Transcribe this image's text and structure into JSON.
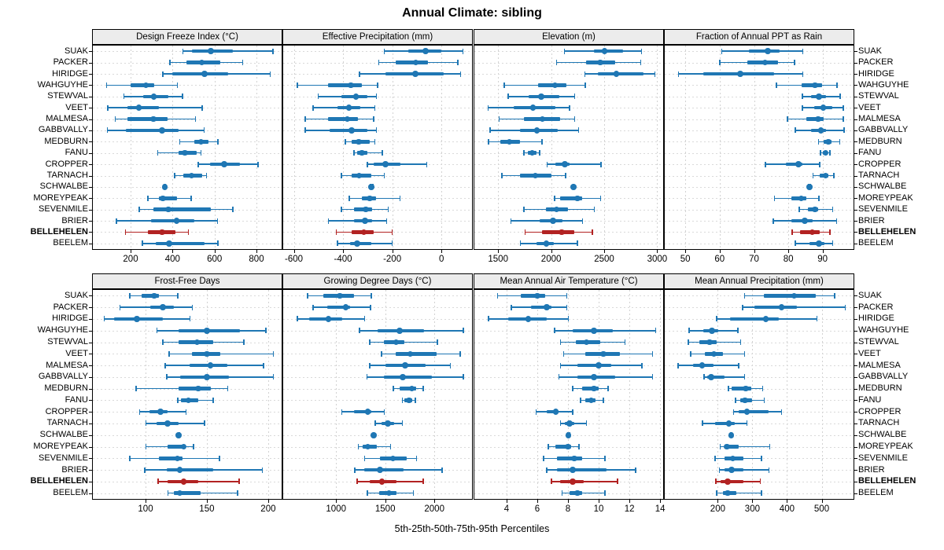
{
  "title": "Annual Climate: sibling",
  "caption": "5th-25th-50th-75th-95th Percentiles",
  "sites": [
    "SUAK",
    "PACKER",
    "HIRIDGE",
    "WAHGUYHE",
    "STEWVAL",
    "VEET",
    "MALMESA",
    "GABBVALLY",
    "MEDBURN",
    "FANU",
    "CROPPER",
    "TARNACH",
    "SCHWALBE",
    "MOREYPEAK",
    "SEVENMILE",
    "BRIER",
    "BELLEHELEN",
    "BEELEM"
  ],
  "highlight_site": "BELLEHELEN",
  "colors": {
    "series": "#1f77b4",
    "highlight": "#b22222",
    "strip_bg": "#ececec",
    "grid": "#d6d6d6",
    "border": "#000000"
  },
  "chart_data": [
    {
      "type": "dotplot-interval",
      "title": "Design Freeze Index (°C)",
      "percentiles": [
        5,
        25,
        50,
        75,
        95
      ],
      "xlim": [
        20,
        920
      ],
      "ticks": [
        200,
        400,
        600,
        800
      ],
      "values": [
        [
          448,
          491,
          583,
          687,
          877
        ],
        [
          387,
          467,
          540,
          626,
          734
        ],
        [
          353,
          397,
          552,
          666,
          865
        ],
        [
          85,
          198,
          273,
          314,
          422
        ],
        [
          167,
          259,
          310,
          379,
          446
        ],
        [
          90,
          184,
          240,
          334,
          540
        ],
        [
          125,
          184,
          309,
          375,
          509
        ],
        [
          88,
          178,
          349,
          428,
          550
        ],
        [
          434,
          503,
          536,
          571,
          615
        ],
        [
          328,
          428,
          459,
          515,
          534
        ],
        [
          521,
          580,
          646,
          723,
          806
        ],
        [
          409,
          450,
          491,
          540,
          561
        ],
        [
          358,
          360,
          362,
          364,
          366
        ],
        [
          281,
          334,
          354,
          421,
          488
        ],
        [
          240,
          309,
          380,
          584,
          686
        ],
        [
          131,
          296,
          420,
          503,
          613
        ],
        [
          175,
          281,
          349,
          415,
          475
        ],
        [
          255,
          321,
          383,
          553,
          615
        ]
      ]
    },
    {
      "type": "dotplot-interval",
      "title": "Effective Precipitation (mm)",
      "percentiles": [
        5,
        25,
        50,
        75,
        95
      ],
      "xlim": [
        -643,
        124
      ],
      "ticks": [
        -600,
        -400,
        -200,
        0
      ],
      "values": [
        [
          -234,
          -134,
          -65,
          -2,
          87
        ],
        [
          -255,
          -186,
          -105,
          -55,
          66
        ],
        [
          -334,
          -228,
          -107,
          8,
          77
        ],
        [
          -586,
          -460,
          -368,
          -323,
          -260
        ],
        [
          -502,
          -407,
          -347,
          -302,
          -265
        ],
        [
          -523,
          -423,
          -376,
          -328,
          -271
        ],
        [
          -555,
          -460,
          -383,
          -339,
          -276
        ],
        [
          -555,
          -455,
          -365,
          -302,
          -265
        ],
        [
          -392,
          -365,
          -337,
          -292,
          -271
        ],
        [
          -357,
          -344,
          -323,
          -302,
          -241
        ],
        [
          -302,
          -276,
          -228,
          -165,
          -60
        ],
        [
          -407,
          -365,
          -334,
          -286,
          -234
        ],
        [
          -290,
          -287,
          -285,
          -283,
          -280
        ],
        [
          -376,
          -323,
          -292,
          -265,
          -170
        ],
        [
          -407,
          -355,
          -307,
          -281,
          -218
        ],
        [
          -460,
          -355,
          -310,
          -281,
          -223
        ],
        [
          -428,
          -365,
          -316,
          -276,
          -202
        ],
        [
          -423,
          -370,
          -342,
          -286,
          -202
        ]
      ]
    },
    {
      "type": "dotplot-interval",
      "title": "Elevation (m)",
      "percentiles": [
        5,
        25,
        50,
        75,
        95
      ],
      "xlim": [
        1276,
        3056
      ],
      "ticks": [
        1500,
        2000,
        2500,
        3000
      ],
      "values": [
        [
          2123,
          2406,
          2504,
          2676,
          2849
        ],
        [
          2049,
          2332,
          2462,
          2602,
          2844
        ],
        [
          2315,
          2443,
          2615,
          2873,
          2977
        ],
        [
          1557,
          1878,
          2037,
          2147,
          2320
        ],
        [
          1594,
          1790,
          1906,
          2074,
          2221
        ],
        [
          1402,
          1643,
          1827,
          2037,
          2172
        ],
        [
          1507,
          1741,
          1918,
          2086,
          2221
        ],
        [
          1421,
          1704,
          1864,
          2061,
          2258
        ],
        [
          1409,
          1520,
          1606,
          1704,
          1913
        ],
        [
          1741,
          1778,
          1822,
          1864,
          1889
        ],
        [
          1958,
          2037,
          2130,
          2172,
          2468
        ],
        [
          1532,
          1704,
          1852,
          2000,
          2135
        ],
        [
          2205,
          2207,
          2209,
          2211,
          2213
        ],
        [
          2029,
          2086,
          2246,
          2295,
          2463
        ],
        [
          1741,
          1950,
          2049,
          2160,
          2406
        ],
        [
          1618,
          1889,
          2019,
          2110,
          2295
        ],
        [
          1753,
          1913,
          2098,
          2221,
          2388
        ],
        [
          1709,
          1864,
          1955,
          2024,
          2246
        ]
      ]
    },
    {
      "type": "dotplot-interval",
      "title": "Fraction of Annual PPT as Rain",
      "percentiles": [
        5,
        25,
        50,
        75,
        95
      ],
      "xlim": [
        44,
        99
      ],
      "ticks": [
        50,
        60,
        70,
        80,
        90
      ],
      "values": [
        [
          60.5,
          68.4,
          74,
          77.4,
          84.2
        ],
        [
          60,
          68,
          73.2,
          77,
          81.8
        ],
        [
          47.9,
          55.3,
          66,
          75.9,
          84.2
        ],
        [
          76.5,
          83.8,
          87.8,
          89.9,
          94.1
        ],
        [
          84,
          86.5,
          88.9,
          91,
          95
        ],
        [
          84,
          87.6,
          90.2,
          92.9,
          96
        ],
        [
          79.7,
          85.3,
          88.7,
          90.2,
          96
        ],
        [
          82,
          86.5,
          89.5,
          91,
          96.2
        ],
        [
          88.7,
          90.2,
          91.6,
          92.5,
          94.9
        ],
        [
          89.3,
          90.1,
          90.8,
          91.4,
          92.1
        ],
        [
          73.3,
          79.3,
          82.9,
          84.2,
          89.1
        ],
        [
          87.1,
          89.1,
          90.8,
          91.7,
          93.2
        ],
        [
          85.9,
          86,
          86.1,
          86.2,
          86.3
        ],
        [
          75.9,
          80.8,
          83.8,
          85.3,
          88.9
        ],
        [
          83.1,
          85.7,
          87.8,
          88.7,
          92.9
        ],
        [
          75.6,
          80.8,
          84.8,
          87.2,
          94
        ],
        [
          81.1,
          83.5,
          87,
          89.1,
          92.1
        ],
        [
          82,
          86.1,
          88.9,
          90.6,
          92.9
        ]
      ]
    },
    {
      "type": "dotplot-interval",
      "title": "Frost-Free Days",
      "percentiles": [
        5,
        25,
        50,
        75,
        95
      ],
      "xlim": [
        57,
        211
      ],
      "ticks": [
        100,
        150,
        200
      ],
      "values": [
        [
          87,
          97,
          107,
          111,
          126
        ],
        [
          79,
          104,
          114,
          123,
          138
        ],
        [
          66,
          74,
          93,
          114,
          136
        ],
        [
          109,
          127,
          150,
          177,
          198
        ],
        [
          114,
          127,
          142,
          155,
          180
        ],
        [
          119,
          138,
          150,
          161,
          204
        ],
        [
          116,
          136,
          153,
          167,
          196
        ],
        [
          117,
          128,
          150,
          168,
          204
        ],
        [
          92,
          127,
          143,
          153,
          167
        ],
        [
          126,
          129,
          135,
          143,
          155
        ],
        [
          95,
          103,
          112,
          118,
          133
        ],
        [
          100,
          109,
          118,
          127,
          148
        ],
        [
          126.5,
          126.8,
          127,
          127.2,
          127.5
        ],
        [
          100,
          118,
          131,
          132,
          139
        ],
        [
          87,
          111,
          126,
          130,
          160
        ],
        [
          99,
          117,
          128,
          155,
          195
        ],
        [
          110,
          118,
          131,
          143,
          176
        ],
        [
          118,
          123,
          128,
          145,
          175
        ]
      ]
    },
    {
      "type": "dotplot-interval",
      "title": "Growing Degree Days (°C)",
      "percentiles": [
        5,
        25,
        50,
        75,
        95
      ],
      "xlim": [
        463,
        2382
      ],
      "ticks": [
        1000,
        1500,
        2000
      ],
      "values": [
        [
          710,
          868,
          1039,
          1184,
          1355
        ],
        [
          763,
          908,
          1100,
          1145,
          1350
        ],
        [
          605,
          724,
          921,
          1066,
          1289
        ],
        [
          1237,
          1426,
          1645,
          1895,
          2290
        ],
        [
          1342,
          1487,
          1611,
          1697,
          2026
        ],
        [
          1461,
          1605,
          1755,
          2026,
          2258
        ],
        [
          1342,
          1500,
          1703,
          1908,
          2158
        ],
        [
          1311,
          1487,
          1676,
          1974,
          2290
        ],
        [
          1579,
          1645,
          1771,
          1816,
          1882
        ],
        [
          1671,
          1697,
          1742,
          1776,
          1803
        ],
        [
          1058,
          1184,
          1321,
          1355,
          1487
        ],
        [
          1395,
          1461,
          1526,
          1592,
          1671
        ],
        [
          1380,
          1381,
          1382,
          1383,
          1384
        ],
        [
          1224,
          1268,
          1324,
          1413,
          1553
        ],
        [
          1290,
          1450,
          1580,
          1720,
          1816
        ],
        [
          1189,
          1284,
          1447,
          1689,
          2074
        ],
        [
          1211,
          1342,
          1468,
          1618,
          1882
        ],
        [
          1316,
          1442,
          1539,
          1618,
          1784
        ]
      ]
    },
    {
      "type": "dotplot-interval",
      "title": "Mean Annual Air Temperature (°C)",
      "percentiles": [
        5,
        25,
        50,
        75,
        95
      ],
      "xlim": [
        1.9,
        14.2
      ],
      "ticks": [
        4,
        6,
        8,
        10,
        12,
        14
      ],
      "values": [
        [
          3.4,
          4.9,
          6.0,
          6.5,
          7.9
        ],
        [
          4.3,
          5.6,
          6.6,
          6.9,
          7.9
        ],
        [
          2.8,
          4.1,
          5.4,
          6.6,
          8.0
        ],
        [
          7.1,
          8.3,
          9.7,
          10.9,
          13.7
        ],
        [
          7.5,
          8.5,
          9.2,
          10.1,
          11.7
        ],
        [
          7.7,
          9.1,
          10.3,
          11.4,
          13.5
        ],
        [
          7.5,
          8.6,
          10.0,
          10.8,
          12.8
        ],
        [
          7.4,
          8.6,
          9.7,
          11.1,
          13.5
        ],
        [
          8.3,
          8.9,
          9.7,
          10.0,
          10.6
        ],
        [
          8.8,
          9.1,
          9.5,
          9.8,
          10.3
        ],
        [
          5.9,
          6.6,
          7.2,
          7.4,
          8.3
        ],
        [
          7.5,
          7.8,
          8.1,
          8.4,
          9.2
        ],
        [
          7.95,
          8.0,
          8.02,
          8.05,
          8.1
        ],
        [
          6.7,
          7.2,
          8.0,
          8.2,
          8.7
        ],
        [
          6.4,
          7.3,
          8.4,
          8.9,
          10.4
        ],
        [
          6.6,
          7.3,
          8.3,
          10.5,
          12.4
        ],
        [
          6.9,
          7.5,
          8.3,
          9.0,
          11.2
        ],
        [
          7.6,
          8.1,
          8.6,
          8.9,
          10.4
        ]
      ]
    },
    {
      "type": "dotplot-interval",
      "title": "Mean Annual Precipitation (mm)",
      "percentiles": [
        5,
        25,
        50,
        75,
        95
      ],
      "xlim": [
        47,
        592
      ],
      "ticks": [
        200,
        300,
        400,
        500
      ],
      "values": [
        [
          277,
          332,
          420,
          482,
          537
        ],
        [
          271,
          305,
          384,
          429,
          568
        ],
        [
          196,
          236,
          339,
          377,
          486
        ],
        [
          117,
          159,
          183,
          202,
          258
        ],
        [
          114,
          147,
          176,
          196,
          265
        ],
        [
          121,
          162,
          189,
          215,
          277
        ],
        [
          85,
          129,
          155,
          189,
          260
        ],
        [
          160,
          170,
          181,
          219,
          277
        ],
        [
          230,
          241,
          281,
          296,
          329
        ],
        [
          251,
          264,
          279,
          298,
          334
        ],
        [
          245,
          260,
          284,
          347,
          384
        ],
        [
          155,
          192,
          232,
          249,
          284
        ],
        [
          237,
          238,
          239,
          240,
          241
        ],
        [
          206,
          219,
          226,
          260,
          349
        ],
        [
          192,
          219,
          243,
          275,
          326
        ],
        [
          204,
          219,
          240,
          274,
          347
        ],
        [
          194,
          208,
          229,
          274,
          322
        ],
        [
          196,
          214,
          228,
          253,
          326
        ]
      ]
    }
  ]
}
